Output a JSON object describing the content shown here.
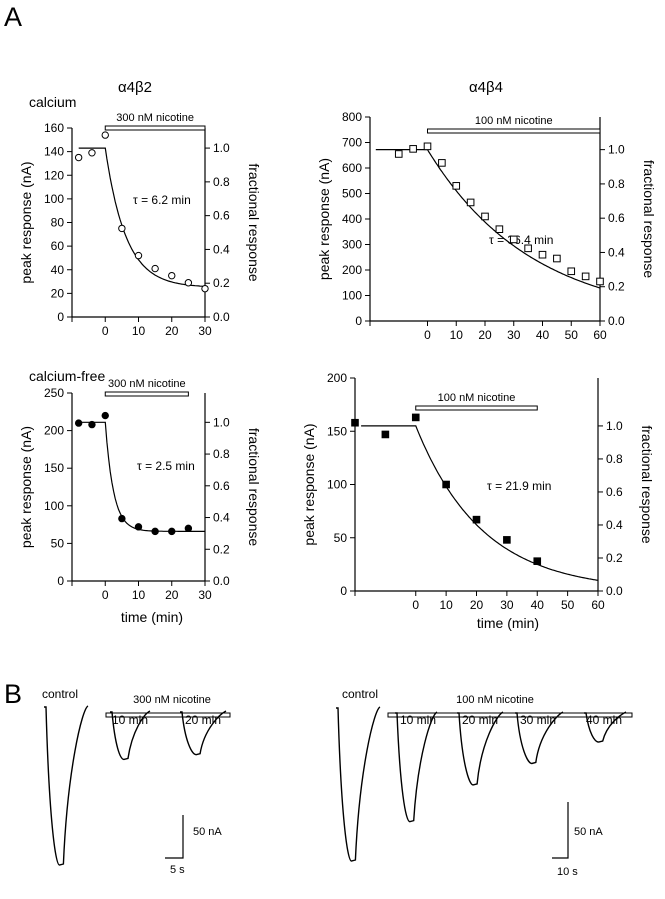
{
  "panel_labels": {
    "a": "A",
    "b": "B"
  },
  "row_labels": {
    "top": "calcium",
    "bottom": "calcium-free"
  },
  "column_titles": {
    "left": "α4β2",
    "right": "α4β4"
  },
  "axis_text": {
    "ylabel": "peak response (nA)",
    "y2label": "fractional response",
    "xlabel": "time (min)"
  },
  "chart_data": [
    {
      "type": "scatter",
      "receptor": "α4β2",
      "condition": "calcium",
      "xlim": [
        -10,
        30
      ],
      "ylim": [
        0,
        160
      ],
      "y2lim": [
        0,
        1.0
      ],
      "xticks": [
        0,
        10,
        20,
        30
      ],
      "yticks": [
        0,
        20,
        40,
        60,
        80,
        100,
        120,
        140,
        160
      ],
      "y2ticks": [
        "0.0",
        "0.2",
        "0.4",
        "0.6",
        "0.8",
        "1.0"
      ],
      "marker": "open-circle",
      "bar_label": "300 nM nicotine",
      "bar_range": [
        0,
        30
      ],
      "annotation": "τ = 6.2 min",
      "x": [
        -8,
        -4,
        0,
        5,
        10,
        15,
        20,
        25,
        30
      ],
      "y": [
        135,
        139,
        154,
        75,
        52,
        41,
        35,
        29,
        24
      ],
      "fit": {
        "baseline": 143,
        "plateau": 25,
        "tau": 6.2,
        "t0": 0
      }
    },
    {
      "type": "scatter",
      "receptor": "α4β4",
      "condition": "calcium",
      "xlim": [
        -20,
        60
      ],
      "ylim": [
        0,
        800
      ],
      "y2lim": [
        0,
        1.0
      ],
      "xticks": [
        0,
        10,
        20,
        30,
        40,
        50,
        60
      ],
      "yticks": [
        0,
        100,
        200,
        300,
        400,
        500,
        600,
        700,
        800
      ],
      "y2ticks": [
        "0.0",
        "0.2",
        "0.4",
        "0.6",
        "0.8",
        "1.0"
      ],
      "marker": "open-square",
      "bar_label": "100 nM nicotine",
      "bar_range": [
        0,
        60
      ],
      "annotation": "τ = 36.4 min",
      "x": [
        -10,
        -5,
        0,
        5,
        10,
        15,
        20,
        25,
        30,
        35,
        40,
        45,
        50,
        55,
        60
      ],
      "y": [
        655,
        675,
        685,
        620,
        530,
        465,
        410,
        360,
        320,
        285,
        260,
        245,
        195,
        175,
        155
      ],
      "fit": {
        "baseline": 672,
        "plateau": 0,
        "tau": 36.4,
        "t0": 0
      }
    },
    {
      "type": "scatter",
      "receptor": "α4β2",
      "condition": "calcium-free",
      "xlim": [
        -10,
        30
      ],
      "ylim": [
        0,
        250
      ],
      "y2lim": [
        0,
        1.0
      ],
      "xticks": [
        0,
        10,
        20,
        30
      ],
      "yticks": [
        0,
        50,
        100,
        150,
        200,
        250
      ],
      "y2ticks": [
        "0.0",
        "0.2",
        "0.4",
        "0.6",
        "0.8",
        "1.0"
      ],
      "marker": "filled-circle",
      "bar_label": "300 nM nicotine",
      "bar_range": [
        0,
        25
      ],
      "annotation": "τ = 2.5 min",
      "x": [
        -8,
        -4,
        0,
        5,
        10,
        15,
        20,
        25
      ],
      "y": [
        210,
        208,
        220,
        83,
        72,
        66,
        66,
        70
      ],
      "fit": {
        "baseline": 211,
        "plateau": 66,
        "tau": 2.5,
        "t0": 0
      }
    },
    {
      "type": "scatter",
      "receptor": "α4β4",
      "condition": "calcium-free",
      "xlim": [
        -20,
        60
      ],
      "ylim": [
        0,
        200
      ],
      "y2lim": [
        0,
        1.0
      ],
      "xticks": [
        0,
        10,
        20,
        30,
        40,
        50,
        60
      ],
      "yticks": [
        0,
        50,
        100,
        150,
        200
      ],
      "y2ticks": [
        "0.0",
        "0.2",
        "0.4",
        "0.6",
        "0.8",
        "1.0"
      ],
      "marker": "filled-square",
      "bar_label": "100 nM nicotine",
      "bar_range": [
        0,
        40
      ],
      "annotation": "τ = 21.9 min",
      "x": [
        -20,
        -10,
        0,
        10,
        20,
        30,
        40
      ],
      "y": [
        158,
        147,
        163,
        100,
        67,
        48,
        28
      ],
      "fit": {
        "baseline": 155,
        "plateau": 0,
        "tau": 21.9,
        "t0": 0
      }
    }
  ],
  "traces": {
    "left": {
      "bar_label": "300 nM nicotine",
      "scale_current": "50 nA",
      "scale_time": "5 s",
      "items": [
        {
          "label": "control",
          "depth": 1.0
        },
        {
          "label": "10 min",
          "depth": 0.3
        },
        {
          "label": "20 min",
          "depth": 0.27
        }
      ]
    },
    "right": {
      "bar_label": "100 nM nicotine",
      "scale_current": "50 nA",
      "scale_time": "10 s",
      "items": [
        {
          "label": "control",
          "depth": 1.0
        },
        {
          "label": "10 min",
          "depth": 0.71
        },
        {
          "label": "20 min",
          "depth": 0.47
        },
        {
          "label": "30 min",
          "depth": 0.33
        },
        {
          "label": "40 min",
          "depth": 0.19
        }
      ]
    }
  }
}
